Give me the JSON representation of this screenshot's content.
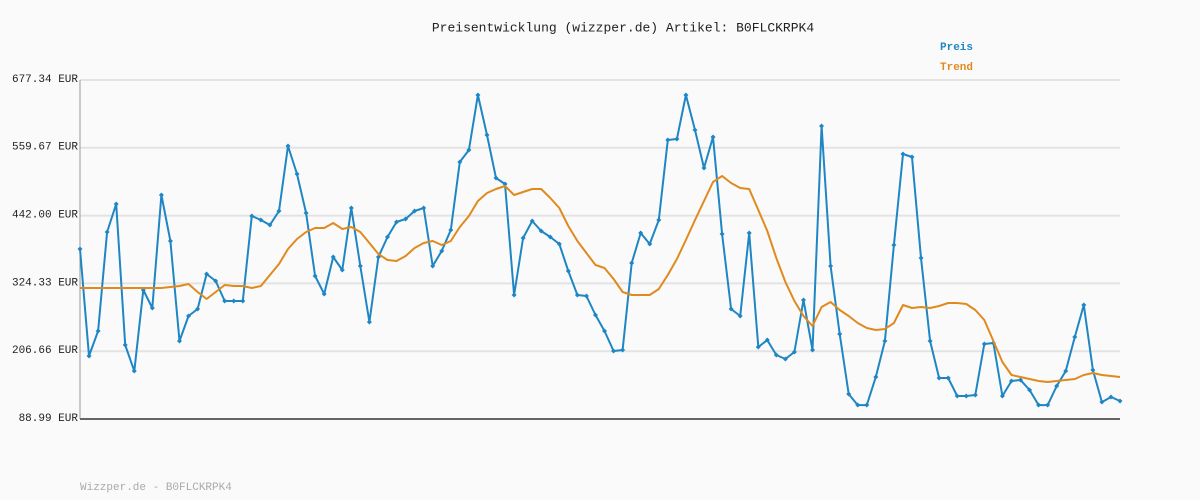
{
  "chart_data": {
    "type": "line",
    "title": "Preisentwicklung (wizzper.de) Artikel: B0FLCKRPK4",
    "footer": "Wizzper.de - B0FLCKRPK4",
    "ylim": [
      88.99,
      677.34
    ],
    "yticks": [
      {
        "value": 88.99,
        "label": "88.99 EUR"
      },
      {
        "value": 206.66,
        "label": "206.66 EUR"
      },
      {
        "value": 324.33,
        "label": "324.33 EUR"
      },
      {
        "value": 442.0,
        "label": "442.00 EUR"
      },
      {
        "value": 559.67,
        "label": "559.67 EUR"
      },
      {
        "value": 677.34,
        "label": "677.34 EUR"
      }
    ],
    "grid": true,
    "legend": "top-right",
    "series": [
      {
        "name": "Preis",
        "color": "#1f86c4",
        "markers": true,
        "values": [
          384.0,
          198.3,
          241.7,
          413.5,
          462.1,
          217.4,
          172.2,
          312.9,
          281.6,
          477.7,
          397.9,
          224.3,
          267.7,
          279.9,
          340.6,
          328.5,
          293.7,
          293.7,
          293.7,
          441.3,
          434.3,
          425.7,
          450.0,
          562.8,
          514.2,
          446.5,
          337.2,
          305.9,
          370.1,
          347.6,
          455.2,
          354.5,
          257.3,
          370.1,
          404.9,
          430.9,
          436.1,
          450.0,
          455.2,
          354.5,
          380.5,
          417.0,
          535.0,
          555.8,
          651.3,
          581.9,
          507.2,
          496.8,
          304.2,
          403.1,
          432.6,
          415.2,
          404.9,
          392.7,
          345.8,
          304.2,
          302.4,
          269.4,
          241.7,
          207.0,
          208.7,
          359.7,
          411.8,
          392.7,
          434.3,
          573.2,
          574.9,
          651.3,
          590.5,
          524.6,
          578.4,
          410.0,
          279.9,
          267.7,
          411.8,
          213.9,
          226.0,
          200.0,
          193.1,
          205.2,
          295.5,
          208.7,
          597.5,
          354.5,
          236.5,
          132.3,
          113.2,
          113.2,
          161.8,
          224.3,
          390.9,
          548.9,
          543.7,
          368.4,
          224.3,
          160.1,
          160.1,
          128.9,
          128.9,
          130.6,
          219.1,
          220.9,
          128.9,
          154.9,
          156.6,
          139.3,
          113.2,
          113.2,
          146.2,
          172.2,
          231.3,
          286.8,
          174.0,
          118.4,
          127.1,
          120.2
        ]
      },
      {
        "name": "Trend",
        "color": "#e08a1e",
        "markers": false,
        "values": [
          316.3,
          316.3,
          316.3,
          316.3,
          316.3,
          316.3,
          316.3,
          316.3,
          316.3,
          316.3,
          318.1,
          319.8,
          323.3,
          309.4,
          297.2,
          309.4,
          321.5,
          319.8,
          319.8,
          316.3,
          319.8,
          338.9,
          358.0,
          384.0,
          401.4,
          413.5,
          420.5,
          420.5,
          429.2,
          418.7,
          422.2,
          413.5,
          394.4,
          375.3,
          364.9,
          363.2,
          371.9,
          385.8,
          394.4,
          397.9,
          391.0,
          397.9,
          422.2,
          441.3,
          467.3,
          481.2,
          488.2,
          493.4,
          477.7,
          482.9,
          488.2,
          488.2,
          472.5,
          455.2,
          423.9,
          397.9,
          377.1,
          356.2,
          351.0,
          331.9,
          309.4,
          304.2,
          304.2,
          304.2,
          314.6,
          338.9,
          366.7,
          399.6,
          434.3,
          467.3,
          500.3,
          510.7,
          498.6,
          489.9,
          488.2,
          451.7,
          415.2,
          368.4,
          326.8,
          293.8,
          267.7,
          250.4,
          283.3,
          292.0,
          278.1,
          267.7,
          255.6,
          247.0,
          243.4,
          245.2,
          255.6,
          286.8,
          281.6,
          283.3,
          281.6,
          285.1,
          290.3,
          290.3,
          288.5,
          278.1,
          260.8,
          224.3,
          187.9,
          165.3,
          161.8,
          158.4,
          154.9,
          153.2,
          154.9,
          156.6,
          158.4,
          165.3,
          168.8,
          165.3,
          163.6,
          161.8
        ]
      }
    ]
  }
}
